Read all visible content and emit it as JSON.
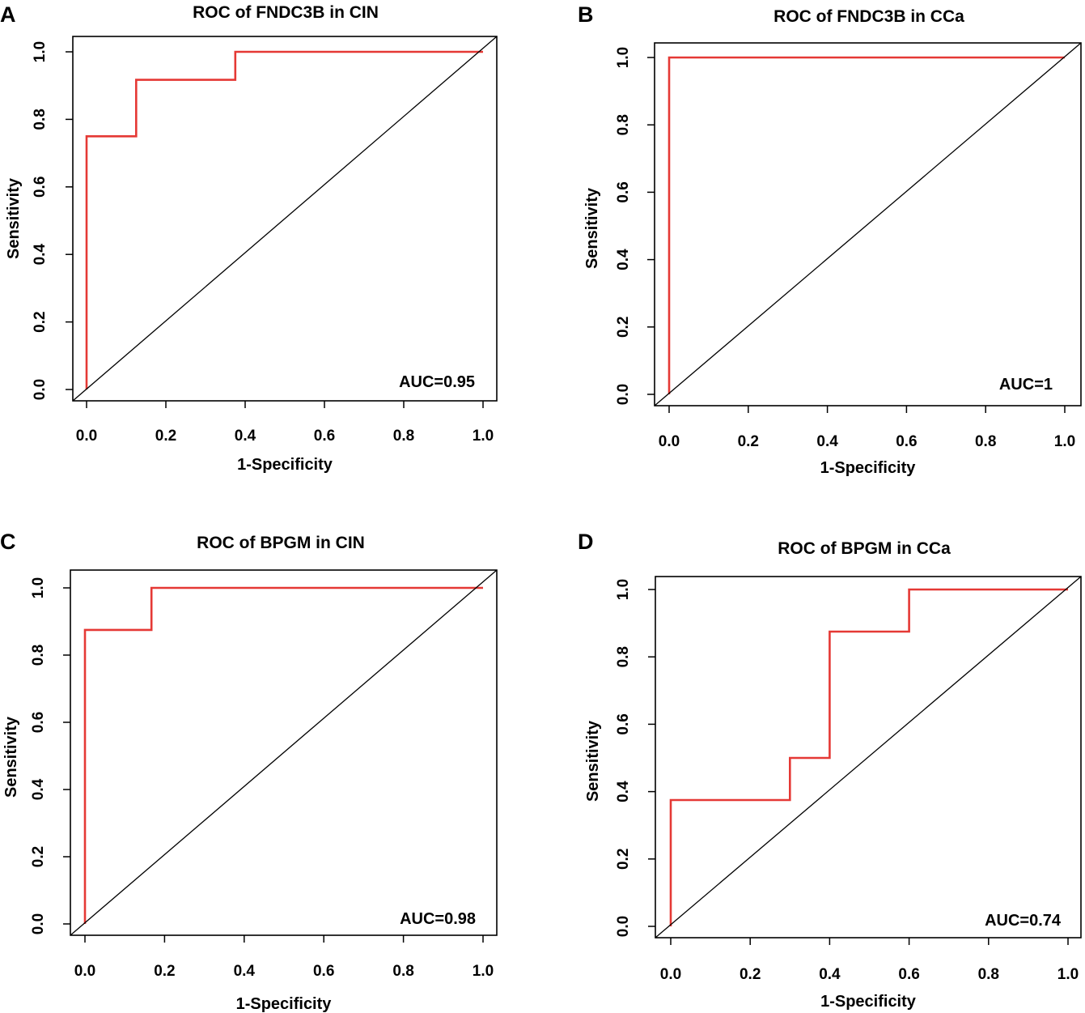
{
  "figure": {
    "background": "#ffffff",
    "curve_color": "#e53935",
    "axis_color": "#000000"
  },
  "chart_data": [
    {
      "type": "line",
      "panel_label": "A",
      "title": "ROC of FNDC3B in CIN",
      "xlabel": "1-Specificity",
      "ylabel": "Sensitivity",
      "xlim": [
        0,
        1
      ],
      "ylim": [
        0,
        1
      ],
      "xticks": [
        "0.0",
        "0.2",
        "0.4",
        "0.6",
        "0.8",
        "1.0"
      ],
      "yticks": [
        "0.0",
        "0.2",
        "0.4",
        "0.6",
        "0.8",
        "1.0"
      ],
      "annotation": "AUC=0.95",
      "series": [
        {
          "name": "ROC",
          "x": [
            0,
            0,
            0.125,
            0.125,
            0.375,
            0.375,
            1.0
          ],
          "y": [
            0,
            0.75,
            0.75,
            0.917,
            0.917,
            1.0,
            1.0
          ]
        },
        {
          "name": "reference",
          "x": [
            0,
            1
          ],
          "y": [
            0,
            1
          ]
        }
      ]
    },
    {
      "type": "line",
      "panel_label": "B",
      "title": "ROC of FNDC3B in CCa",
      "xlabel": "1-Specificity",
      "ylabel": "Sensitivity",
      "xlim": [
        0,
        1
      ],
      "ylim": [
        0,
        1
      ],
      "xticks": [
        "0.0",
        "0.2",
        "0.4",
        "0.6",
        "0.8",
        "1.0"
      ],
      "yticks": [
        "0.0",
        "0.2",
        "0.4",
        "0.6",
        "0.8",
        "1.0"
      ],
      "annotation": "AUC=1",
      "series": [
        {
          "name": "ROC",
          "x": [
            0,
            0,
            1.0
          ],
          "y": [
            0,
            1.0,
            1.0
          ]
        },
        {
          "name": "reference",
          "x": [
            0,
            1
          ],
          "y": [
            0,
            1
          ]
        }
      ]
    },
    {
      "type": "line",
      "panel_label": "C",
      "title": "ROC of BPGM in CIN",
      "xlabel": "1-Specificity",
      "ylabel": "Sensitivity",
      "xlim": [
        0,
        1
      ],
      "ylim": [
        0,
        1
      ],
      "xticks": [
        "0.0",
        "0.2",
        "0.4",
        "0.6",
        "0.8",
        "1.0"
      ],
      "yticks": [
        "0.0",
        "0.2",
        "0.4",
        "0.6",
        "0.8",
        "1.0"
      ],
      "annotation": "AUC=0.98",
      "series": [
        {
          "name": "ROC",
          "x": [
            0,
            0,
            0.167,
            0.167,
            1.0
          ],
          "y": [
            0,
            0.875,
            0.875,
            1.0,
            1.0
          ]
        },
        {
          "name": "reference",
          "x": [
            0,
            1
          ],
          "y": [
            0,
            1
          ]
        }
      ]
    },
    {
      "type": "line",
      "panel_label": "D",
      "title": "ROC of BPGM in CCa",
      "xlabel": "1-Specificity",
      "ylabel": "Sensitivity",
      "xlim": [
        0,
        1
      ],
      "ylim": [
        0,
        1
      ],
      "xticks": [
        "0.0",
        "0.2",
        "0.4",
        "0.6",
        "0.8",
        "1.0"
      ],
      "yticks": [
        "0.0",
        "0.2",
        "0.4",
        "0.6",
        "0.8",
        "1.0"
      ],
      "annotation": "AUC=0.74",
      "series": [
        {
          "name": "ROC",
          "x": [
            0,
            0,
            0.3,
            0.3,
            0.4,
            0.4,
            0.6,
            0.6,
            1.0
          ],
          "y": [
            0,
            0.375,
            0.375,
            0.5,
            0.5,
            0.875,
            0.875,
            1.0,
            1.0
          ]
        },
        {
          "name": "reference",
          "x": [
            0,
            1
          ],
          "y": [
            0,
            1
          ]
        }
      ]
    }
  ]
}
